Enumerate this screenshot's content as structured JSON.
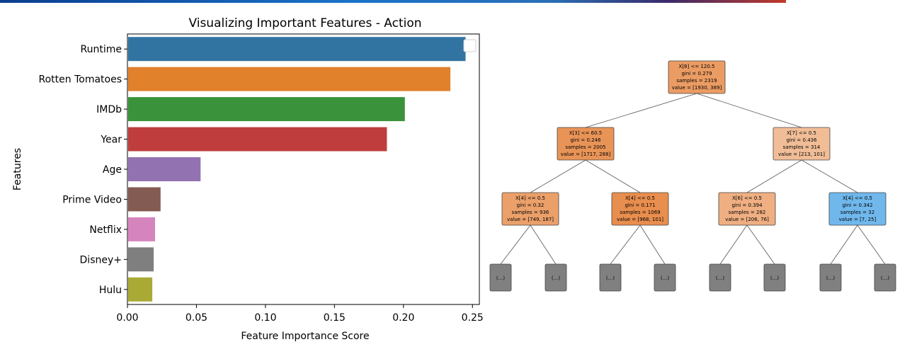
{
  "chart_data": [
    {
      "type": "bar",
      "orientation": "horizontal",
      "title": "Visualizing Important Features - Action",
      "xlabel": "Feature Importance Score",
      "ylabel": "Features",
      "xlim": [
        0,
        0.255
      ],
      "xticks": [
        "0.00",
        "0.05",
        "0.10",
        "0.15",
        "0.20",
        "0.25"
      ],
      "grid": false,
      "legend": "top-right (empty)",
      "categories": [
        "Runtime",
        "Rotten Tomatoes",
        "IMDb",
        "Year",
        "Age",
        "Prime Video",
        "Netflix",
        "Disney+",
        "Hulu"
      ],
      "values": [
        0.245,
        0.234,
        0.201,
        0.188,
        0.053,
        0.024,
        0.02,
        0.019,
        0.018
      ],
      "colors": [
        "#3274a1",
        "#e1812c",
        "#3a923a",
        "#c03d3e",
        "#9372b2",
        "#845b53",
        "#d684bd",
        "#7f7f7f",
        "#a9aa35"
      ]
    },
    {
      "type": "tree",
      "nodes": [
        {
          "id": "n0",
          "lines": [
            "X[8] <= 120.5",
            "gini = 0.279",
            "samples = 2319",
            "value = [1930, 389]"
          ],
          "fill": "#eb9c63"
        },
        {
          "id": "n1",
          "lines": [
            "X[3] <= 60.5",
            "gini = 0.246",
            "samples = 2005",
            "value = [1717, 288]"
          ],
          "fill": "#e99457"
        },
        {
          "id": "n2",
          "lines": [
            "X[7] <= 0.5",
            "gini = 0.436",
            "samples = 314",
            "value = [213, 101]"
          ],
          "fill": "#f1bd97"
        },
        {
          "id": "n3",
          "lines": [
            "X[4] <= 0.5",
            "gini = 0.32",
            "samples = 936",
            "value = [749, 187]"
          ],
          "fill": "#eba06a"
        },
        {
          "id": "n4",
          "lines": [
            "X[4] <= 0.5",
            "gini = 0.171",
            "samples = 1069",
            "value = [968, 101]"
          ],
          "fill": "#e88e4e"
        },
        {
          "id": "n5",
          "lines": [
            "X[6] <= 0.5",
            "gini = 0.394",
            "samples = 282",
            "value = [206, 76]"
          ],
          "fill": "#efaf82"
        },
        {
          "id": "n6",
          "lines": [
            "X[4] <= 0.5",
            "gini = 0.342",
            "samples = 32",
            "value = [7, 25]"
          ],
          "fill": "#70b8ec"
        }
      ],
      "leaf_label": "(...)",
      "leaf_count": 8,
      "leaf_fill": "#808080"
    }
  ]
}
